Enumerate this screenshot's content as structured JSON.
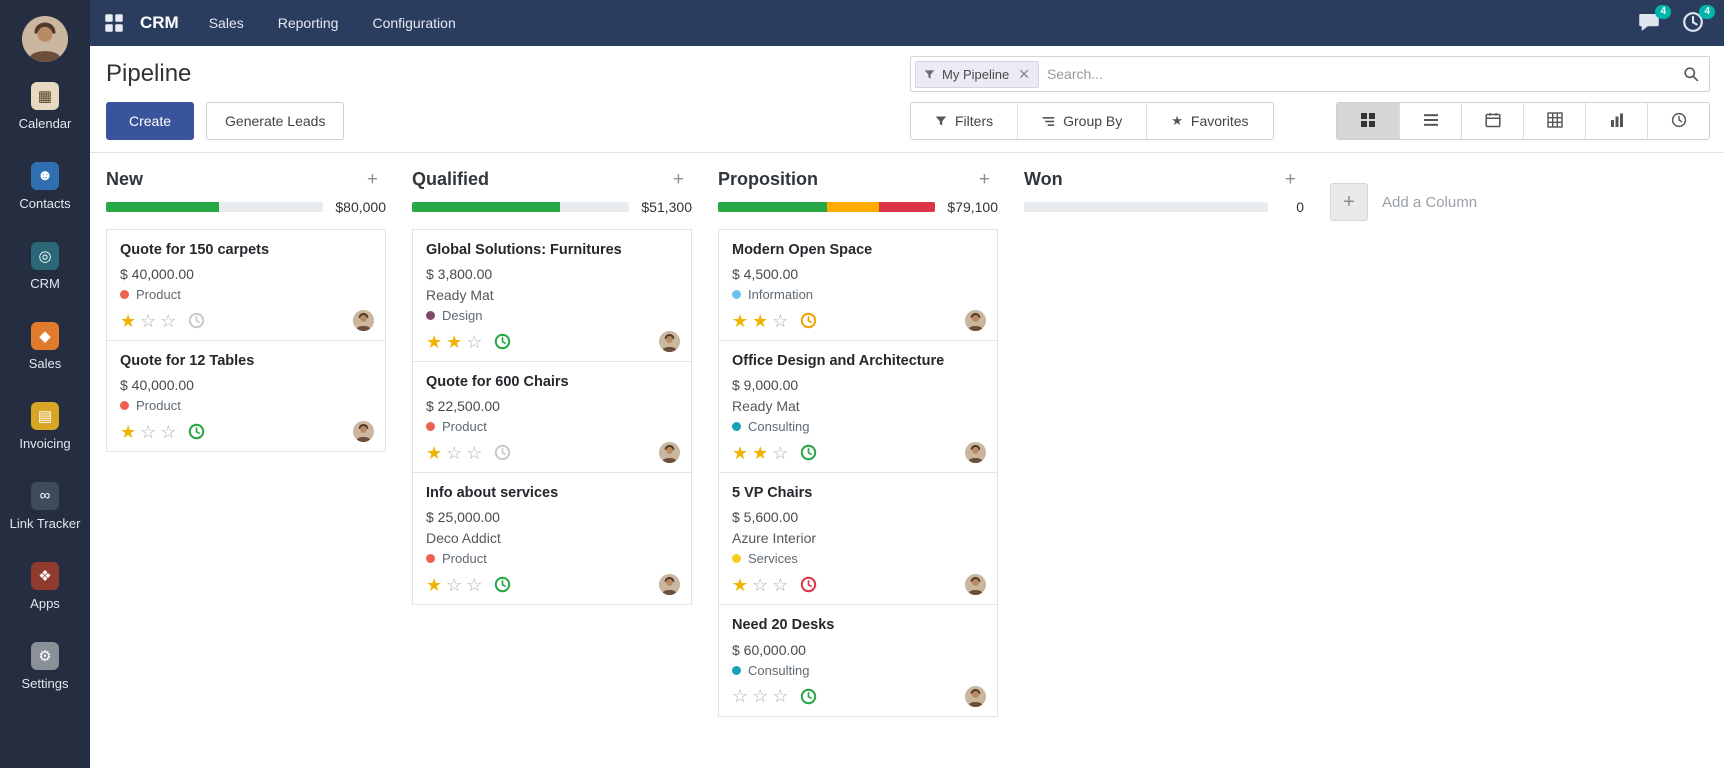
{
  "navbar": {
    "app_name": "CRM",
    "menus": [
      {
        "label": "Sales"
      },
      {
        "label": "Reporting"
      },
      {
        "label": "Configuration"
      }
    ],
    "messages_badge": "4",
    "activities_badge": "4",
    "badge_color": "#00b5ad"
  },
  "sidebar": {
    "items": [
      {
        "label": "Calendar",
        "icon": "calendar",
        "color": "#e5d9bf",
        "fg": "#5a4428"
      },
      {
        "label": "Contacts",
        "icon": "contacts",
        "color": "#2f6fb2",
        "fg": "#ffffff"
      },
      {
        "label": "CRM",
        "icon": "crm",
        "color": "#2b6777",
        "fg": "#ffffff"
      },
      {
        "label": "Sales",
        "icon": "sales",
        "color": "#e07a2f",
        "fg": "#ffffff"
      },
      {
        "label": "Invoicing",
        "icon": "invoicing",
        "color": "#d9a526",
        "fg": "#ffffff"
      },
      {
        "label": "Link Tracker",
        "icon": "link-tracker",
        "color": "#3f4a5a",
        "fg": "#ffffff"
      },
      {
        "label": "Apps",
        "icon": "apps",
        "color": "#8f3b2e",
        "fg": "#ffffff"
      },
      {
        "label": "Settings",
        "icon": "settings",
        "color": "#8a8f98",
        "fg": "#ffffff"
      }
    ]
  },
  "control_panel": {
    "title": "Pipeline",
    "buttons": {
      "create": "Create",
      "generate_leads": "Generate Leads"
    },
    "search": {
      "facet_label": "My Pipeline",
      "placeholder": "Search..."
    },
    "toolbar": [
      {
        "label": "Filters",
        "icon": "filter"
      },
      {
        "label": "Group By",
        "icon": "group-by"
      },
      {
        "label": "Favorites",
        "icon": "favorites-star"
      }
    ],
    "view_switcher": [
      {
        "name": "kanban",
        "active": true
      },
      {
        "name": "list",
        "active": false
      },
      {
        "name": "calendar",
        "active": false
      },
      {
        "name": "pivot",
        "active": false
      },
      {
        "name": "graph",
        "active": false
      },
      {
        "name": "activity",
        "active": false
      }
    ]
  },
  "board": {
    "add_column_label": "Add a Column",
    "columns": [
      {
        "name": "New",
        "amount": "$80,000",
        "progress": [
          {
            "status": "success",
            "color": "#28a745",
            "pct": 52
          }
        ],
        "cards": [
          {
            "title": "Quote for 150 carpets",
            "amount": "$ 40,000.00",
            "partner": "",
            "tag": {
              "label": "Product",
              "color": "#f06050"
            },
            "stars": 1,
            "activity": {
              "status": "none",
              "color": "#c7cbd1"
            }
          },
          {
            "title": "Quote for 12 Tables",
            "amount": "$ 40,000.00",
            "partner": "",
            "tag": {
              "label": "Product",
              "color": "#f06050"
            },
            "stars": 1,
            "activity": {
              "status": "done",
              "color": "#28a745"
            }
          }
        ]
      },
      {
        "name": "Qualified",
        "amount": "$51,300",
        "progress": [
          {
            "status": "success",
            "color": "#28a745",
            "pct": 68
          }
        ],
        "cards": [
          {
            "title": "Global Solutions: Furnitures",
            "amount": "$ 3,800.00",
            "partner": "Ready Mat",
            "tag": {
              "label": "Design",
              "color": "#814968"
            },
            "stars": 2,
            "activity": {
              "status": "done",
              "color": "#28a745"
            }
          },
          {
            "title": "Quote for 600 Chairs",
            "amount": "$ 22,500.00",
            "partner": "",
            "tag": {
              "label": "Product",
              "color": "#f06050"
            },
            "stars": 1,
            "activity": {
              "status": "none",
              "color": "#c7cbd1"
            }
          },
          {
            "title": "Info about services",
            "amount": "$ 25,000.00",
            "partner": "Deco Addict",
            "tag": {
              "label": "Product",
              "color": "#f06050"
            },
            "stars": 1,
            "activity": {
              "status": "done",
              "color": "#28a745"
            }
          }
        ]
      },
      {
        "name": "Proposition",
        "amount": "$79,100",
        "progress": [
          {
            "status": "success",
            "color": "#28a745",
            "pct": 50
          },
          {
            "status": "warning",
            "color": "#ffac00",
            "pct": 24
          },
          {
            "status": "danger",
            "color": "#dc3545",
            "pct": 26
          }
        ],
        "cards": [
          {
            "title": "Modern Open Space",
            "amount": "$ 4,500.00",
            "partner": "",
            "tag": {
              "label": "Information",
              "color": "#6cc1ed"
            },
            "stars": 2,
            "activity": {
              "status": "planned",
              "color": "#f0a202"
            }
          },
          {
            "title": "Office Design and Architecture",
            "amount": "$ 9,000.00",
            "partner": "Ready Mat",
            "tag": {
              "label": "Consulting",
              "color": "#17a2b8"
            },
            "stars": 2,
            "activity": {
              "status": "done",
              "color": "#28a745"
            }
          },
          {
            "title": "5 VP Chairs",
            "amount": "$ 5,600.00",
            "partner": "Azure Interior",
            "tag": {
              "label": "Services",
              "color": "#f7cd1f"
            },
            "stars": 1,
            "activity": {
              "status": "overdue",
              "color": "#dc3545"
            }
          },
          {
            "title": "Need 20 Desks",
            "amount": "$ 60,000.00",
            "partner": "",
            "tag": {
              "label": "Consulting",
              "color": "#17a2b8"
            },
            "stars": 0,
            "activity": {
              "status": "done",
              "color": "#28a745"
            }
          }
        ]
      },
      {
        "name": "Won",
        "amount": "0",
        "progress": [],
        "cards": []
      }
    ]
  }
}
